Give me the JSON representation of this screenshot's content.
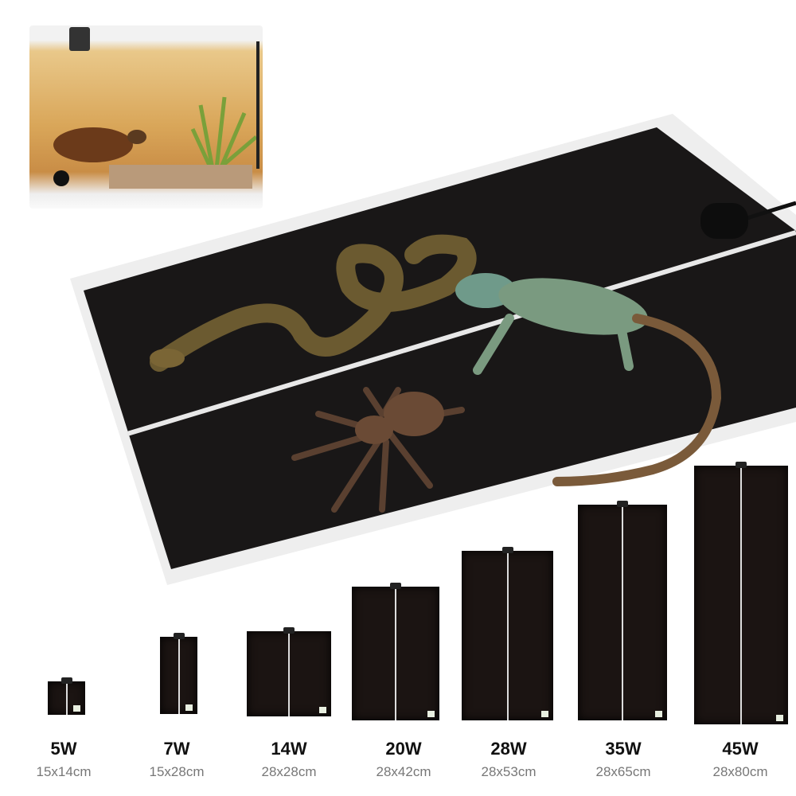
{
  "products": [
    {
      "watt": "5W",
      "size": "15x14cm"
    },
    {
      "watt": "7W",
      "size": "15x28cm"
    },
    {
      "watt": "14W",
      "size": "28x28cm"
    },
    {
      "watt": "20W",
      "size": "28x42cm"
    },
    {
      "watt": "28W",
      "size": "28x53cm"
    },
    {
      "watt": "35W",
      "size": "28x65cm"
    },
    {
      "watt": "45W",
      "size": "28x80cm"
    }
  ],
  "colors": {
    "mat": "#1b1412",
    "label": "#111111",
    "size_text": "#777777"
  }
}
